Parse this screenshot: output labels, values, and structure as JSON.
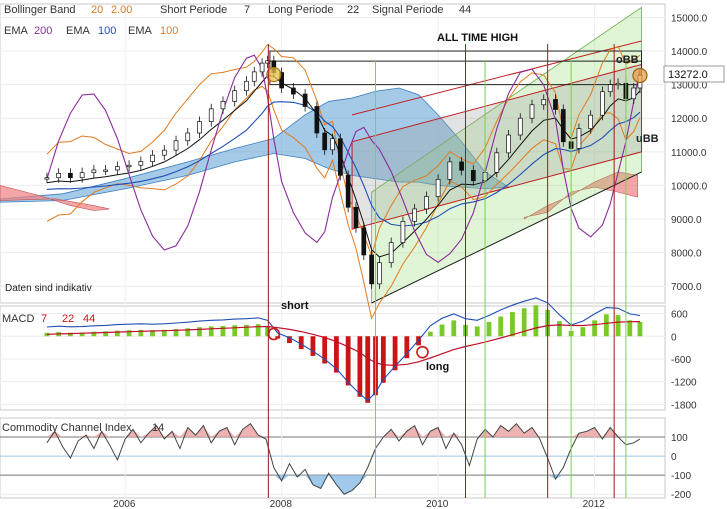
{
  "chart_data": {
    "type": "line",
    "top_indicators": {
      "bollinger": {
        "label": "Bollinger Band",
        "p1": "20",
        "p2": "2.00"
      },
      "short": {
        "label": "Short Periode",
        "value": "7"
      },
      "long": {
        "label": "Long Periode",
        "value": "22"
      },
      "signal": {
        "label": "Signal Periode",
        "value": "44"
      },
      "ema200": {
        "label": "EMA",
        "value": "200"
      },
      "ema100": {
        "label": "EMA",
        "value": "100"
      },
      "ema100b": {
        "label": "EMA",
        "value": "100"
      }
    },
    "price_panel": {
      "y_ticks": [
        "15000.0",
        "14000.0",
        "13000.0",
        "12000.0",
        "11000.0",
        "10000.0",
        "9000.0",
        "8000.0",
        "7000.0"
      ],
      "y_values": [
        15000,
        14000,
        13000,
        12000,
        11000,
        10000,
        9000,
        8000,
        7000
      ],
      "ylim": [
        6500,
        15400
      ],
      "current_price": "13272.0",
      "annotation_ath": "ALL TIME HIGH",
      "label_obb": "oBB",
      "label_ubb": "uBB",
      "disclaimer": "Daten sind indikativ",
      "price_series": [
        [
          2005.0,
          10230
        ],
        [
          2005.15,
          10360
        ],
        [
          2005.3,
          10230
        ],
        [
          2005.45,
          10380
        ],
        [
          2005.6,
          10460
        ],
        [
          2005.75,
          10460
        ],
        [
          2005.9,
          10560
        ],
        [
          2006.05,
          10600
        ],
        [
          2006.2,
          10710
        ],
        [
          2006.35,
          10900
        ],
        [
          2006.5,
          11050
        ],
        [
          2006.65,
          11330
        ],
        [
          2006.8,
          11560
        ],
        [
          2006.95,
          11900
        ],
        [
          2007.1,
          12280
        ],
        [
          2007.25,
          12500
        ],
        [
          2007.4,
          12820
        ],
        [
          2007.55,
          13100
        ],
        [
          2007.65,
          13380
        ],
        [
          2007.75,
          13640
        ],
        [
          2007.82,
          13710
        ],
        [
          2007.9,
          13360
        ],
        [
          2008.0,
          12900
        ],
        [
          2008.15,
          12720
        ],
        [
          2008.3,
          12350
        ],
        [
          2008.45,
          11560
        ],
        [
          2008.55,
          11060
        ],
        [
          2008.65,
          11390
        ],
        [
          2008.75,
          10300
        ],
        [
          2008.85,
          9350
        ],
        [
          2008.95,
          8740
        ],
        [
          2009.05,
          7930
        ],
        [
          2009.15,
          7070
        ],
        [
          2009.25,
          7700
        ],
        [
          2009.4,
          8300
        ],
        [
          2009.55,
          8930
        ],
        [
          2009.7,
          9300
        ],
        [
          2009.85,
          9670
        ],
        [
          2010.0,
          10180
        ],
        [
          2010.15,
          10700
        ],
        [
          2010.3,
          10450
        ],
        [
          2010.45,
          10140
        ],
        [
          2010.6,
          10390
        ],
        [
          2010.75,
          10970
        ],
        [
          2010.9,
          11500
        ],
        [
          2011.05,
          12000
        ],
        [
          2011.2,
          12400
        ],
        [
          2011.35,
          12560
        ],
        [
          2011.5,
          12260
        ],
        [
          2011.6,
          11300
        ],
        [
          2011.7,
          11100
        ],
        [
          2011.8,
          11690
        ],
        [
          2011.95,
          12090
        ],
        [
          2012.1,
          12790
        ],
        [
          2012.2,
          13000
        ],
        [
          2012.3,
          13040
        ],
        [
          2012.4,
          12580
        ],
        [
          2012.5,
          12900
        ],
        [
          2012.58,
          13272
        ]
      ]
    },
    "macd_panel": {
      "label": "MACD",
      "p1": "7",
      "p2": "22",
      "p3": "44",
      "y_ticks": [
        "600",
        "0",
        "-600",
        "-1200",
        "-1800"
      ],
      "y_values": [
        600,
        0,
        -600,
        -1200,
        -1800
      ],
      "ylim": [
        -1950,
        800
      ],
      "annotation_short": "short",
      "annotation_long": "long",
      "histogram": [
        [
          2005.0,
          90
        ],
        [
          2005.15,
          110
        ],
        [
          2005.3,
          95
        ],
        [
          2005.45,
          100
        ],
        [
          2005.6,
          120
        ],
        [
          2005.75,
          130
        ],
        [
          2005.9,
          150
        ],
        [
          2006.05,
          160
        ],
        [
          2006.2,
          170
        ],
        [
          2006.35,
          160
        ],
        [
          2006.5,
          170
        ],
        [
          2006.65,
          190
        ],
        [
          2006.8,
          210
        ],
        [
          2006.95,
          240
        ],
        [
          2007.1,
          260
        ],
        [
          2007.25,
          270
        ],
        [
          2007.4,
          290
        ],
        [
          2007.55,
          300
        ],
        [
          2007.7,
          320
        ],
        [
          2007.82,
          260
        ],
        [
          2007.95,
          -60
        ],
        [
          2008.1,
          -180
        ],
        [
          2008.25,
          -340
        ],
        [
          2008.4,
          -520
        ],
        [
          2008.55,
          -720
        ],
        [
          2008.7,
          -960
        ],
        [
          2008.85,
          -1300
        ],
        [
          2009.0,
          -1600
        ],
        [
          2009.1,
          -1760
        ],
        [
          2009.2,
          -1560
        ],
        [
          2009.3,
          -1230
        ],
        [
          2009.45,
          -900
        ],
        [
          2009.6,
          -580
        ],
        [
          2009.75,
          -240
        ],
        [
          2009.9,
          120
        ],
        [
          2010.05,
          310
        ],
        [
          2010.2,
          420
        ],
        [
          2010.35,
          300
        ],
        [
          2010.5,
          260
        ],
        [
          2010.65,
          380
        ],
        [
          2010.8,
          520
        ],
        [
          2010.95,
          640
        ],
        [
          2011.1,
          740
        ],
        [
          2011.25,
          820
        ],
        [
          2011.4,
          700
        ],
        [
          2011.55,
          400
        ],
        [
          2011.7,
          140
        ],
        [
          2011.85,
          240
        ],
        [
          2012.0,
          420
        ],
        [
          2012.15,
          580
        ],
        [
          2012.3,
          560
        ],
        [
          2012.45,
          420
        ],
        [
          2012.58,
          380
        ]
      ]
    },
    "cci_panel": {
      "label": "Commodity Channel Index",
      "period": "14",
      "y_ticks": [
        "100",
        "0",
        "-100",
        "-200"
      ],
      "y_values": [
        100,
        0,
        -100,
        -200
      ],
      "ylim": [
        -220,
        200
      ],
      "cci_series": [
        [
          2005.0,
          70
        ],
        [
          2005.1,
          130
        ],
        [
          2005.2,
          50
        ],
        [
          2005.3,
          -10
        ],
        [
          2005.4,
          80
        ],
        [
          2005.5,
          110
        ],
        [
          2005.6,
          40
        ],
        [
          2005.7,
          130
        ],
        [
          2005.8,
          60
        ],
        [
          2005.9,
          -20
        ],
        [
          2006.0,
          90
        ],
        [
          2006.1,
          140
        ],
        [
          2006.2,
          70
        ],
        [
          2006.3,
          120
        ],
        [
          2006.4,
          160
        ],
        [
          2006.5,
          90
        ],
        [
          2006.6,
          130
        ],
        [
          2006.7,
          40
        ],
        [
          2006.8,
          150
        ],
        [
          2006.9,
          110
        ],
        [
          2007.0,
          160
        ],
        [
          2007.1,
          70
        ],
        [
          2007.2,
          130
        ],
        [
          2007.3,
          150
        ],
        [
          2007.4,
          60
        ],
        [
          2007.5,
          140
        ],
        [
          2007.6,
          170
        ],
        [
          2007.7,
          110
        ],
        [
          2007.8,
          90
        ],
        [
          2007.9,
          -60
        ],
        [
          2008.0,
          -130
        ],
        [
          2008.1,
          -40
        ],
        [
          2008.2,
          -110
        ],
        [
          2008.3,
          -70
        ],
        [
          2008.4,
          -150
        ],
        [
          2008.5,
          -170
        ],
        [
          2008.6,
          -90
        ],
        [
          2008.7,
          -150
        ],
        [
          2008.8,
          -200
        ],
        [
          2008.9,
          -180
        ],
        [
          2009.0,
          -140
        ],
        [
          2009.1,
          -60
        ],
        [
          2009.2,
          40
        ],
        [
          2009.3,
          100
        ],
        [
          2009.4,
          140
        ],
        [
          2009.5,
          80
        ],
        [
          2009.6,
          130
        ],
        [
          2009.7,
          160
        ],
        [
          2009.8,
          60
        ],
        [
          2009.9,
          130
        ],
        [
          2010.0,
          150
        ],
        [
          2010.1,
          40
        ],
        [
          2010.2,
          120
        ],
        [
          2010.3,
          60
        ],
        [
          2010.4,
          -50
        ],
        [
          2010.5,
          90
        ],
        [
          2010.6,
          140
        ],
        [
          2010.7,
          100
        ],
        [
          2010.8,
          160
        ],
        [
          2010.9,
          130
        ],
        [
          2011.0,
          170
        ],
        [
          2011.1,
          120
        ],
        [
          2011.2,
          150
        ],
        [
          2011.3,
          90
        ],
        [
          2011.4,
          -10
        ],
        [
          2011.5,
          -120
        ],
        [
          2011.6,
          -60
        ],
        [
          2011.7,
          40
        ],
        [
          2011.8,
          120
        ],
        [
          2011.9,
          130
        ],
        [
          2012.0,
          150
        ],
        [
          2012.1,
          90
        ],
        [
          2012.2,
          150
        ],
        [
          2012.3,
          100
        ],
        [
          2012.4,
          60
        ],
        [
          2012.5,
          70
        ],
        [
          2012.58,
          90
        ]
      ]
    },
    "x_ticks": [
      {
        "label": "2006",
        "value": 2006
      },
      {
        "label": "2008",
        "value": 2008
      },
      {
        "label": "2010",
        "value": 2010
      },
      {
        "label": "2012",
        "value": 2012
      }
    ],
    "xlim": [
      2004.4,
      2012.9
    ],
    "red_vlines": [
      2007.83,
      2010.35,
      2011.4,
      2012.25
    ],
    "green_vlines": [
      2009.2,
      2010.6,
      2011.7,
      2012.4
    ],
    "colors": {
      "price": "#000000",
      "bb": "#e07b20",
      "ema200": "#8b2c9c",
      "ema100": "#1f4fb5",
      "cloud": "#5a9fd4",
      "macd_pos": "#7ac92a",
      "macd_neg": "#cc1414",
      "signal_line": "#c0102a",
      "cci_line": "#444444",
      "cci_pos": "#e8a0a0",
      "cci_neg": "#8fbfe6",
      "vline_red": "#a01818",
      "vline_green": "#7ad04a"
    }
  }
}
